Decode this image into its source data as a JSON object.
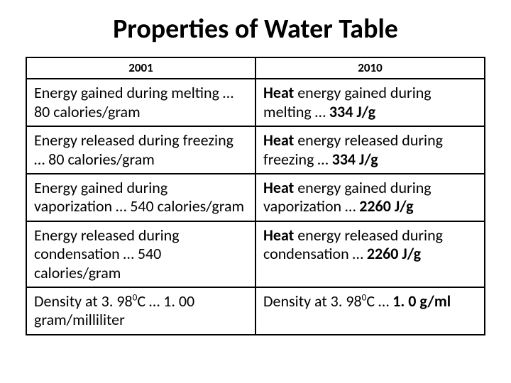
{
  "title": "Properties of Water Table",
  "columns": [
    "2001",
    "2010"
  ],
  "rows": [
    {
      "left": {
        "pre": "Energy gained during melting … 80 calories/gram",
        "bold": "",
        "post": ""
      },
      "right": {
        "pre": "",
        "bold": "Heat",
        "mid": " energy gained during melting … ",
        "bold2": "334 J/g",
        "post": ""
      }
    },
    {
      "left": {
        "pre": "Energy released during freezing … 80 calories/gram",
        "bold": "",
        "post": ""
      },
      "right": {
        "pre": "",
        "bold": "Heat",
        "mid": " energy released during freezing … ",
        "bold2": "334 J/g",
        "post": ""
      }
    },
    {
      "left": {
        "pre": "Energy gained during vaporization … 540 calories/gram",
        "bold": "",
        "post": ""
      },
      "right": {
        "pre": "",
        "bold": "Heat",
        "mid": " energy gained during vaporization … ",
        "bold2": "2260 J/g",
        "post": ""
      }
    },
    {
      "left": {
        "pre": "Energy released during condensation … 540 calories/gram",
        "bold": "",
        "post": ""
      },
      "right": {
        "pre": "",
        "bold": "Heat",
        "mid": " energy released during condensation … ",
        "bold2": "2260 J/g",
        "post": ""
      }
    },
    {
      "left": {
        "pre1": "Density at 3. 98",
        "sup": "0",
        "pre2": "C … 1. 00 gram/milliliter"
      },
      "right": {
        "pre1": "Density at 3. 98",
        "sup": "0",
        "pre2": "C … ",
        "bold2": "1. 0 g/ml"
      }
    }
  ]
}
